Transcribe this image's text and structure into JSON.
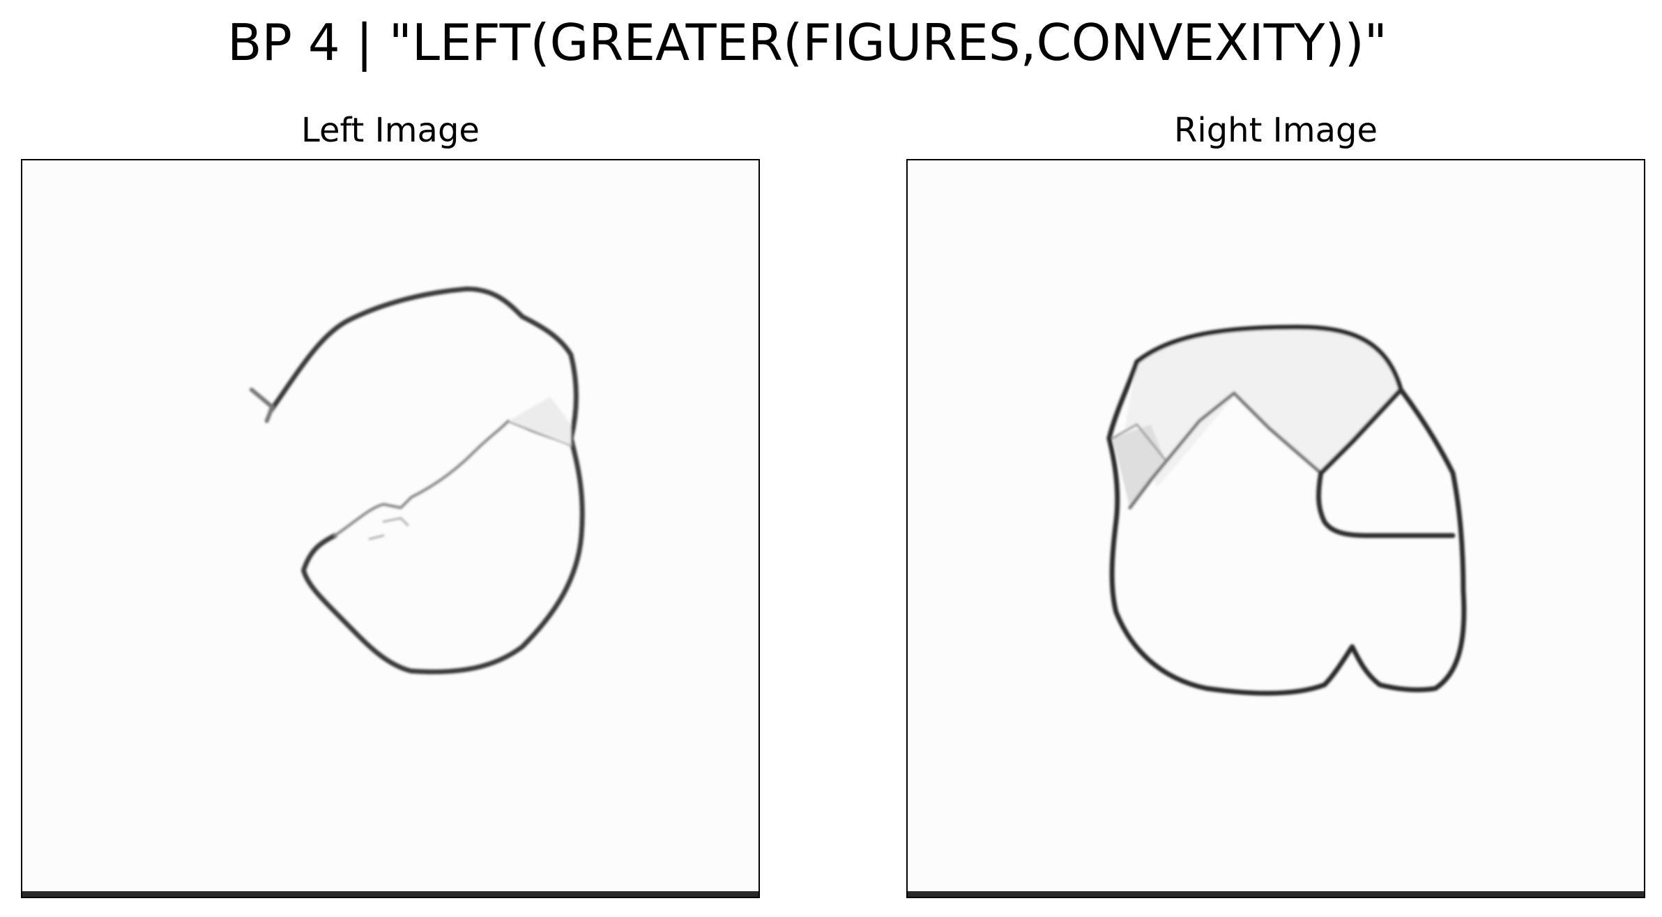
{
  "title": "BP 4 | \"LEFT(GREATER(FIGURES,CONVEXITY))\"",
  "panels": {
    "left": {
      "title": "Left Image"
    },
    "right": {
      "title": "Right Image"
    }
  },
  "colors": {
    "background": "#ffffff",
    "panel_background": "#fcfcfc",
    "stroke": "#2b2b2b",
    "frame": "#000000"
  }
}
